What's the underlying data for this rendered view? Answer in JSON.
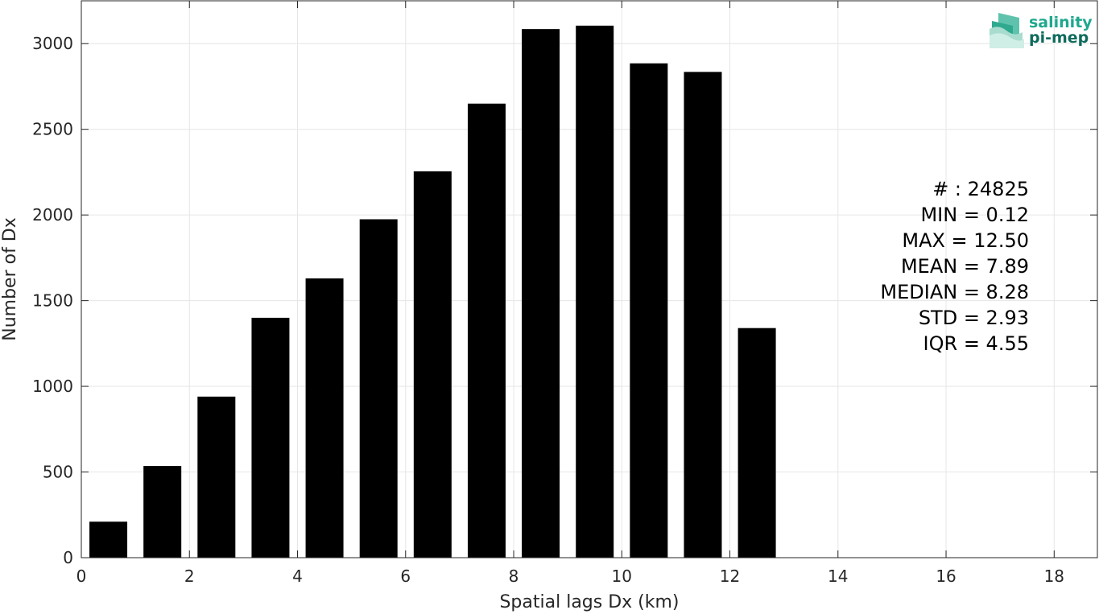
{
  "chart_data": {
    "type": "bar",
    "x": [
      0.5,
      1.5,
      2.5,
      3.5,
      4.5,
      5.5,
      6.5,
      7.5,
      8.5,
      9.5,
      10.5,
      11.5,
      12.5
    ],
    "values": [
      210,
      535,
      940,
      1400,
      1630,
      1975,
      2255,
      2650,
      3085,
      3105,
      2885,
      2835,
      1340
    ],
    "bar_width": 0.7,
    "xlabel": "Spatial lags Dx (km)",
    "ylabel": "Number of Dx",
    "xlim": [
      0,
      18.8
    ],
    "ylim": [
      0,
      3250
    ],
    "xticks": [
      0,
      2,
      4,
      6,
      8,
      10,
      12,
      14,
      16,
      18
    ],
    "yticks": [
      0,
      500,
      1000,
      1500,
      2000,
      2500,
      3000
    ],
    "grid": true,
    "bar_color": "#000000"
  },
  "stats": {
    "count": "# : 24825",
    "min": "MIN = 0.12",
    "max": "MAX =  12.50",
    "mean": "MEAN = 7.89",
    "median": "MEDIAN = 8.28",
    "std": "STD = 2.93",
    "iqr": "IQR = 4.55"
  },
  "logo": {
    "line1": "salinity",
    "line2": "pi-mep",
    "color1": "#1fa88e",
    "color2": "#0e6b5c"
  }
}
